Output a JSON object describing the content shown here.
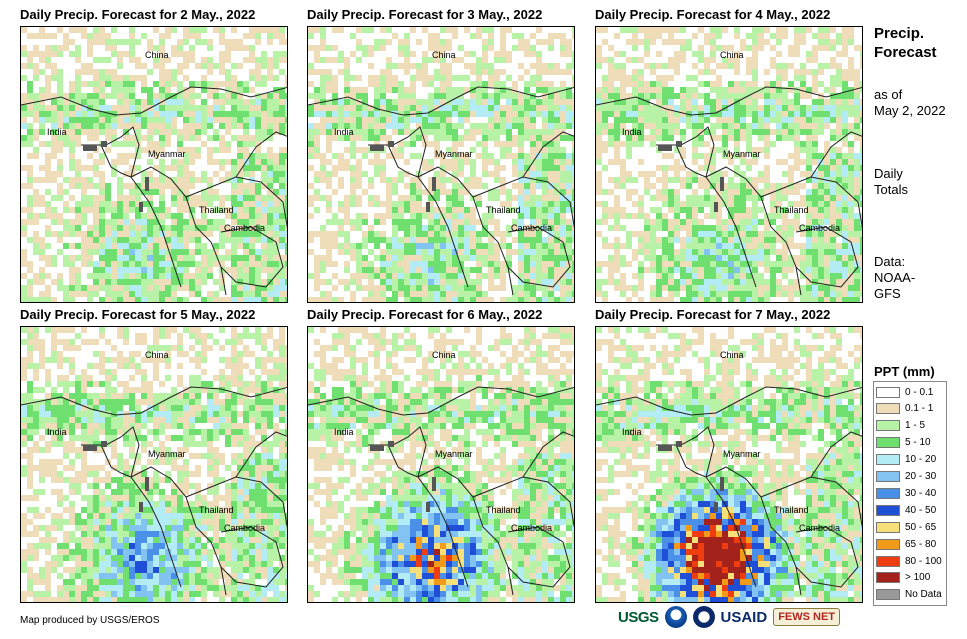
{
  "panels": [
    {
      "title": "Daily Precip. Forecast for 2 May., 2022",
      "storm": "light"
    },
    {
      "title": "Daily Precip. Forecast for 3 May., 2022",
      "storm": "light"
    },
    {
      "title": "Daily Precip. Forecast for 4 May., 2022",
      "storm": "light"
    },
    {
      "title": "Daily Precip. Forecast for 5 May., 2022",
      "storm": "medium"
    },
    {
      "title": "Daily Precip. Forecast for 6 May., 2022",
      "storm": "heavy"
    },
    {
      "title": "Daily Precip. Forecast for 7 May., 2022",
      "storm": "extreme"
    }
  ],
  "countries": {
    "china": "China",
    "india": "India",
    "myanmar": "Myanmar",
    "thailand": "Thailand",
    "cambodia": "Cambodia"
  },
  "side": {
    "title_line1": "Precip.",
    "title_line2": "Forecast",
    "asof_line1": "as of",
    "asof_line2": "May 2, 2022",
    "totals_line1": "Daily",
    "totals_line2": "Totals",
    "data_line1": "Data:",
    "data_line2": "NOAA-",
    "data_line3": "GFS"
  },
  "legend": {
    "title": "PPT (mm)",
    "items": [
      {
        "label": "0 - 0.1",
        "color": "#ffffff"
      },
      {
        "label": "0.1 - 1",
        "color": "#efdcb8"
      },
      {
        "label": "1 - 5",
        "color": "#b8f2a6"
      },
      {
        "label": "5 - 10",
        "color": "#6fe06f"
      },
      {
        "label": "10 - 20",
        "color": "#b3ecf5"
      },
      {
        "label": "20 - 30",
        "color": "#83c3f2"
      },
      {
        "label": "30 - 40",
        "color": "#4a8fe8"
      },
      {
        "label": "40 - 50",
        "color": "#1f4fd6"
      },
      {
        "label": "50 - 65",
        "color": "#f6e07a"
      },
      {
        "label": "65 - 80",
        "color": "#f29a1a"
      },
      {
        "label": "80 - 100",
        "color": "#ef3d12"
      },
      {
        "label": "> 100",
        "color": "#a3221c"
      },
      {
        "label": "No Data",
        "color": "#999999"
      }
    ]
  },
  "credit": "Map produced by USGS/EROS",
  "logos": {
    "usgs": "USGS",
    "usaid": "USAID",
    "fews": "FEWS NET"
  }
}
